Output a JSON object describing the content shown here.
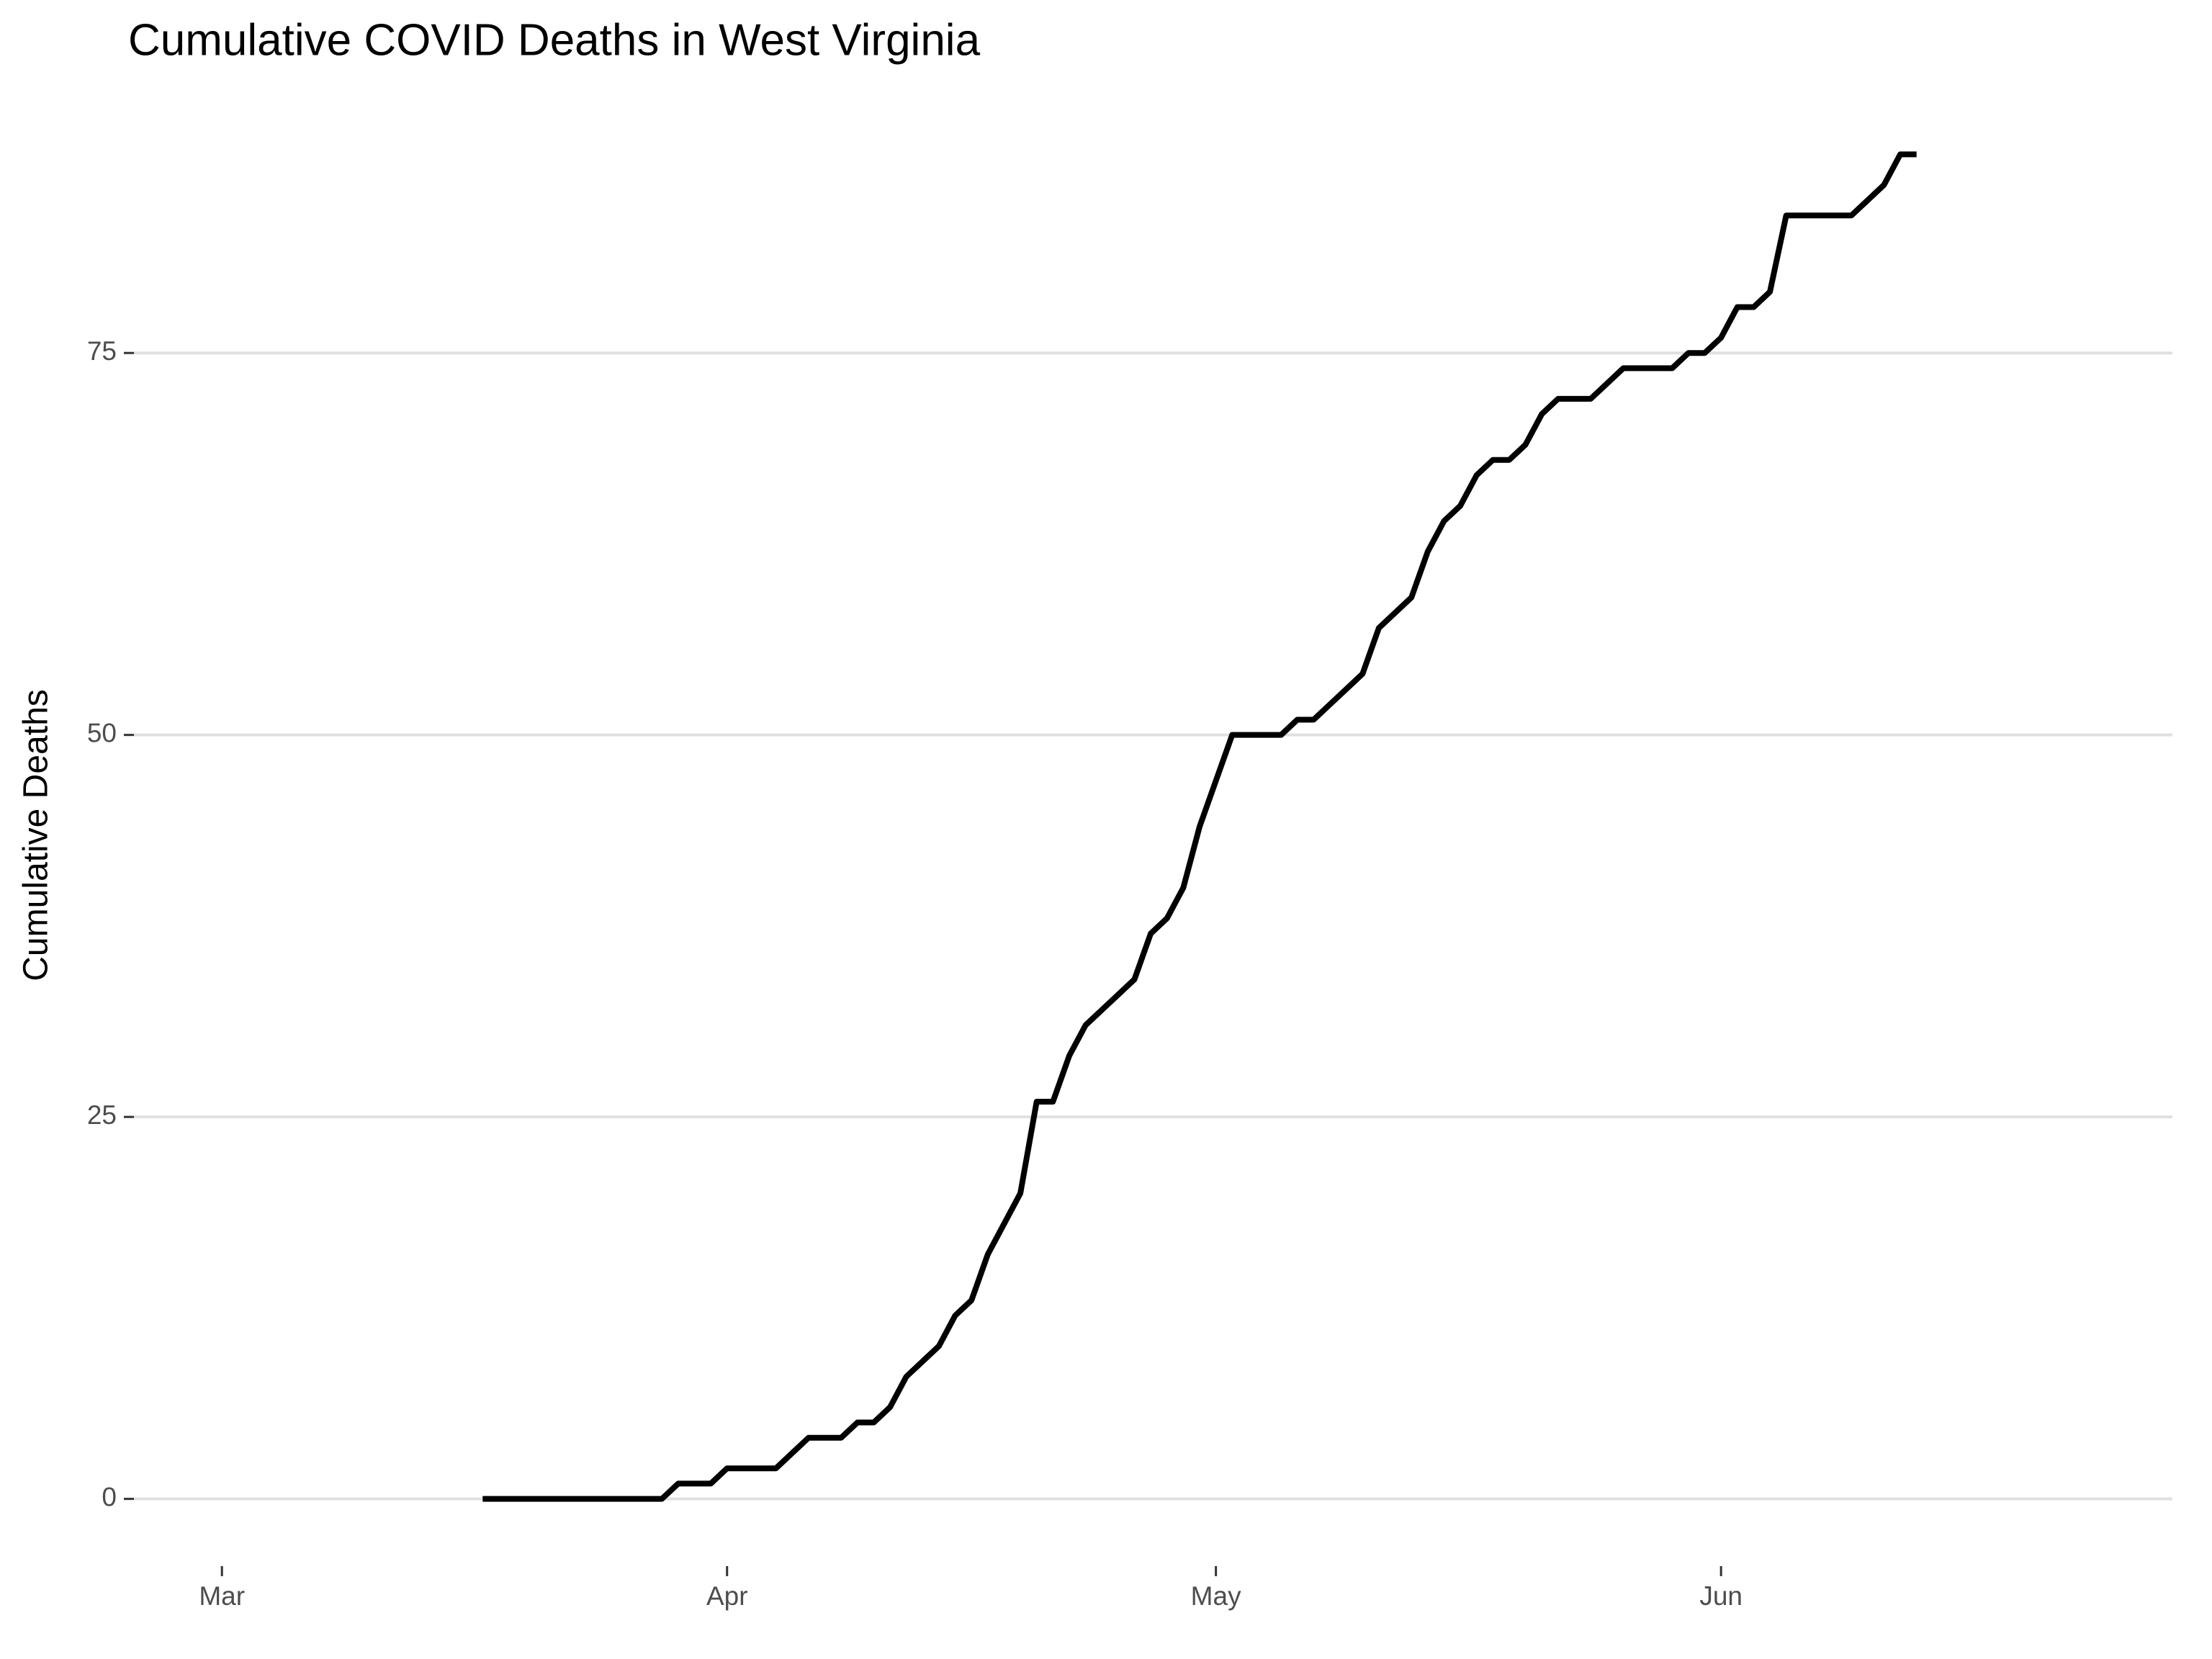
{
  "chart_data": {
    "type": "line",
    "title": "Cumulative COVID Deaths in West Virginia",
    "y_label": "Cumulative Deaths",
    "x": [
      16,
      17,
      18,
      19,
      20,
      21,
      22,
      23,
      24,
      25,
      26,
      27,
      28,
      29,
      30,
      31,
      32,
      33,
      34,
      35,
      36,
      37,
      38,
      39,
      40,
      41,
      42,
      43,
      44,
      45,
      46,
      47,
      48,
      49,
      50,
      51,
      52,
      53,
      54,
      55,
      56,
      57,
      58,
      59,
      60,
      61,
      62,
      63,
      64,
      65,
      66,
      67,
      68,
      69,
      70,
      71,
      72,
      73,
      74,
      75,
      76,
      77,
      78,
      79,
      80,
      81,
      82,
      83,
      84,
      85,
      86,
      87,
      88,
      89,
      90,
      91,
      92,
      93,
      94,
      95,
      96,
      97,
      98,
      99,
      100,
      101,
      102,
      103,
      104
    ],
    "series": [
      {
        "name": "Cumulative Deaths",
        "color": "#000000",
        "values": [
          0,
          0,
          0,
          0,
          0,
          0,
          0,
          0,
          0,
          0,
          0,
          0,
          1,
          1,
          1,
          2,
          2,
          2,
          2,
          3,
          4,
          4,
          4,
          5,
          5,
          6,
          8,
          9,
          10,
          12,
          13,
          16,
          18,
          20,
          26,
          26,
          29,
          31,
          32,
          33,
          34,
          37,
          38,
          40,
          44,
          47,
          50,
          50,
          50,
          50,
          51,
          51,
          52,
          53,
          54,
          57,
          58,
          59,
          62,
          64,
          65,
          67,
          68,
          68,
          69,
          71,
          72,
          72,
          72,
          73,
          74,
          74,
          74,
          74,
          75,
          75,
          76,
          78,
          78,
          79,
          84,
          84,
          84,
          84,
          84,
          85,
          86,
          88,
          88
        ]
      }
    ],
    "xlim": [
      -5.4,
      119.7
    ],
    "xticks": [
      {
        "value": 0,
        "label": "Mar"
      },
      {
        "value": 31,
        "label": "Apr"
      },
      {
        "value": 61,
        "label": "May"
      },
      {
        "value": 92,
        "label": "Jun"
      }
    ],
    "ylim": [
      -4.4,
      92.4
    ],
    "yticks": [
      0,
      25,
      50,
      75
    ],
    "grid": true
  }
}
